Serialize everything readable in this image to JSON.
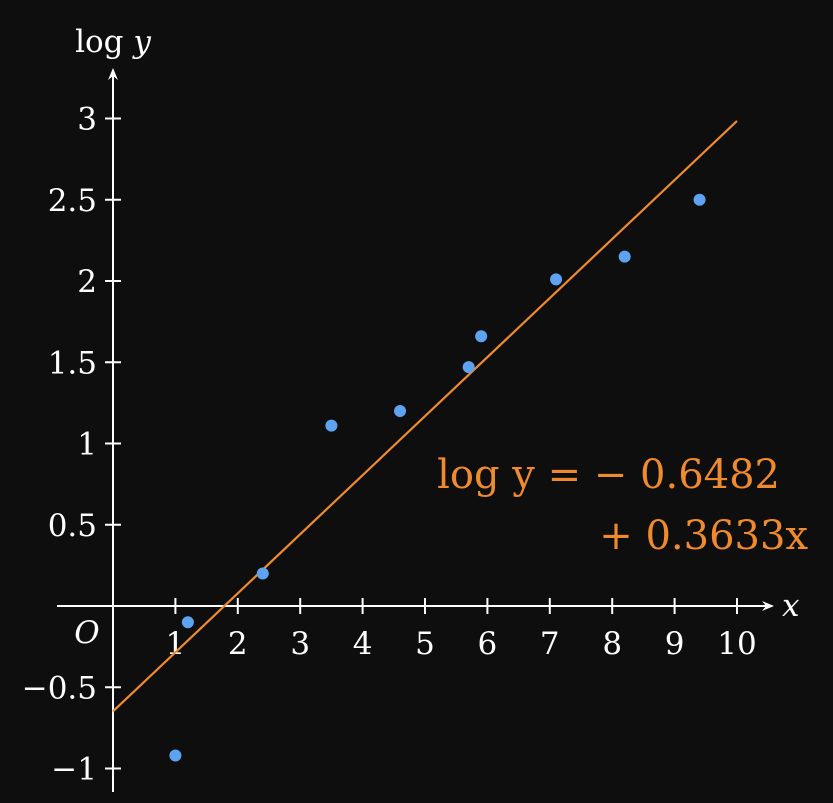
{
  "chart_data": {
    "type": "scatter",
    "title": "",
    "xlabel": "x",
    "ylabel": "log y",
    "origin_label": "O",
    "xlim": [
      0,
      10.3
    ],
    "ylim": [
      -1,
      3.2
    ],
    "x_ticks": [
      1,
      2,
      3,
      4,
      5,
      6,
      7,
      8,
      9,
      10
    ],
    "x_tick_labels": [
      "1",
      "2",
      "3",
      "4",
      "5",
      "6",
      "7",
      "8",
      "9",
      "10"
    ],
    "y_ticks": [
      -1,
      -0.5,
      0.5,
      1,
      1.5,
      2,
      2.5,
      3
    ],
    "y_tick_labels": [
      "−1",
      "−0.5",
      "0.5",
      "1",
      "1.5",
      "2",
      "2.5",
      "3"
    ],
    "grid": false,
    "series": [
      {
        "x": [
          1.0,
          1.2,
          2.4,
          3.5,
          4.6,
          5.7,
          5.9,
          7.1,
          8.2,
          9.4
        ],
        "y": [
          -0.92,
          -0.1,
          0.2,
          1.11,
          1.2,
          1.47,
          1.66,
          2.01,
          2.15,
          2.5
        ]
      }
    ],
    "fit_line": {
      "intercept": -0.6482,
      "slope": 0.3633,
      "x_range": [
        0,
        10
      ]
    },
    "annotation": {
      "line1": "log y = − 0.6482",
      "line2": "+ 0.3633x"
    },
    "colors": {
      "points": "#5ea3f2",
      "fit": "#ef8a2d",
      "axes": "#ffffff",
      "background": "#0e0e0e"
    }
  }
}
